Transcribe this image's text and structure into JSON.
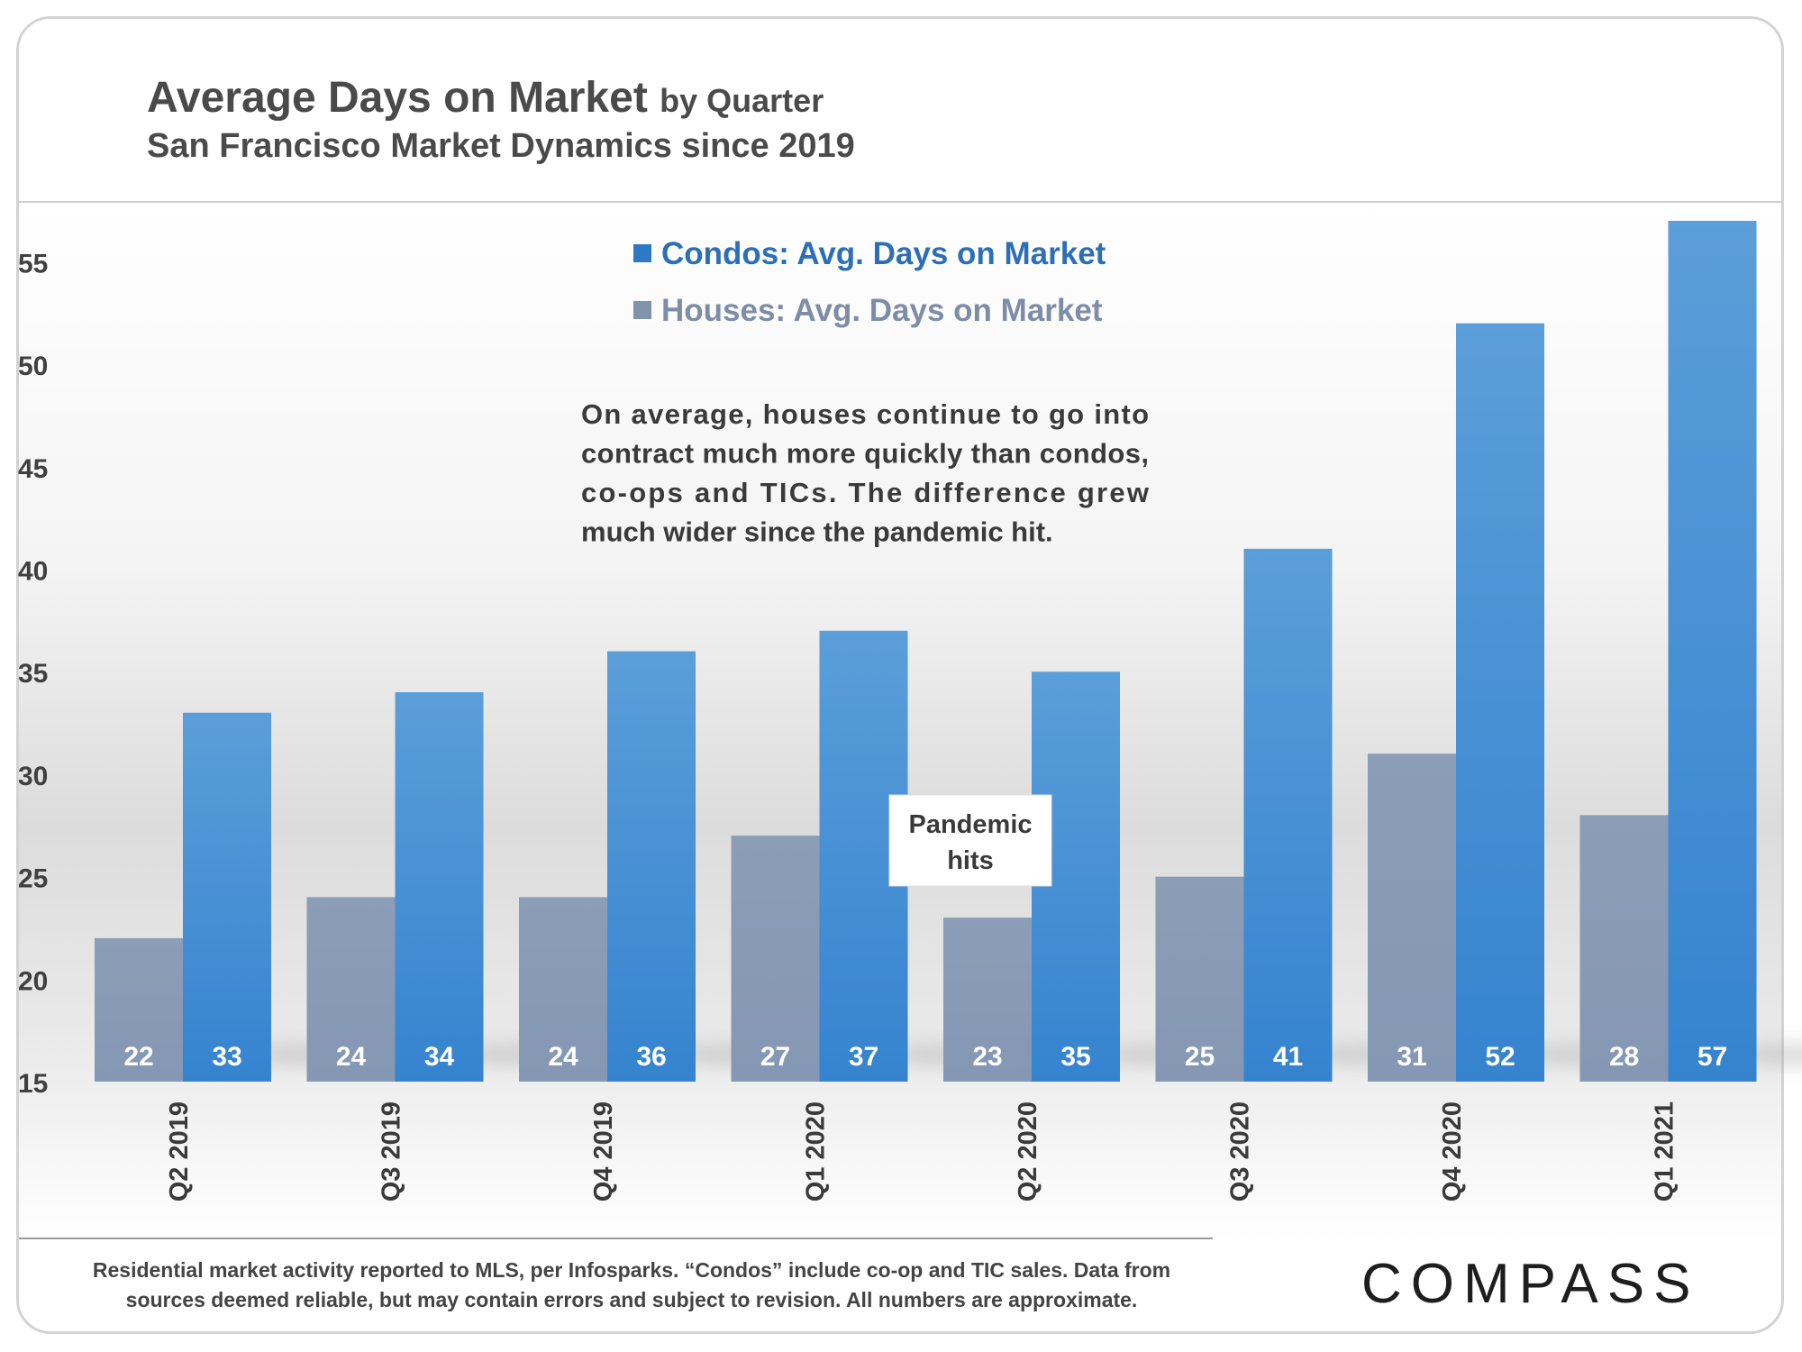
{
  "header": {
    "title_main": "Average Days on Market",
    "title_suffix": "by Quarter",
    "subtitle": "San Francisco Market Dynamics since 2019"
  },
  "annotation": {
    "lines": [
      "On average, houses continue to go into",
      "contract much more quickly than condos,",
      "co-ops and TICs. The difference grew",
      "much wider since the pandemic hit."
    ]
  },
  "callout": {
    "lines": [
      "Pandemic",
      "hits"
    ]
  },
  "footer": {
    "line1": "Residential market activity reported to MLS, per Infosparks. “Condos” include co-op and TIC sales. Data from",
    "line2": "sources deemed reliable, but may contain errors and subject to revision. All numbers are approximate.",
    "brand": "COMPASS"
  },
  "chart_data": {
    "type": "bar",
    "categories": [
      "Q2 2019",
      "Q3 2019",
      "Q4 2019",
      "Q1 2020",
      "Q2 2020",
      "Q3 2020",
      "Q4 2020",
      "Q1 2021"
    ],
    "series": [
      {
        "name": "Houses: Avg. Days on Market",
        "color": "#8a9bb5",
        "values": [
          22,
          24,
          24,
          27,
          23,
          25,
          31,
          28
        ]
      },
      {
        "name": "Condos: Avg. Days on Market",
        "color": "#3f8bd4",
        "values": [
          33,
          34,
          36,
          37,
          35,
          41,
          52,
          57
        ]
      }
    ],
    "legend_order": [
      1,
      0
    ],
    "legend_placement": "top-center",
    "yticks": [
      15,
      20,
      25,
      30,
      35,
      40,
      45,
      50,
      55
    ],
    "ylim": [
      15,
      57
    ],
    "grid": false,
    "xlabel": "",
    "ylabel": ""
  }
}
